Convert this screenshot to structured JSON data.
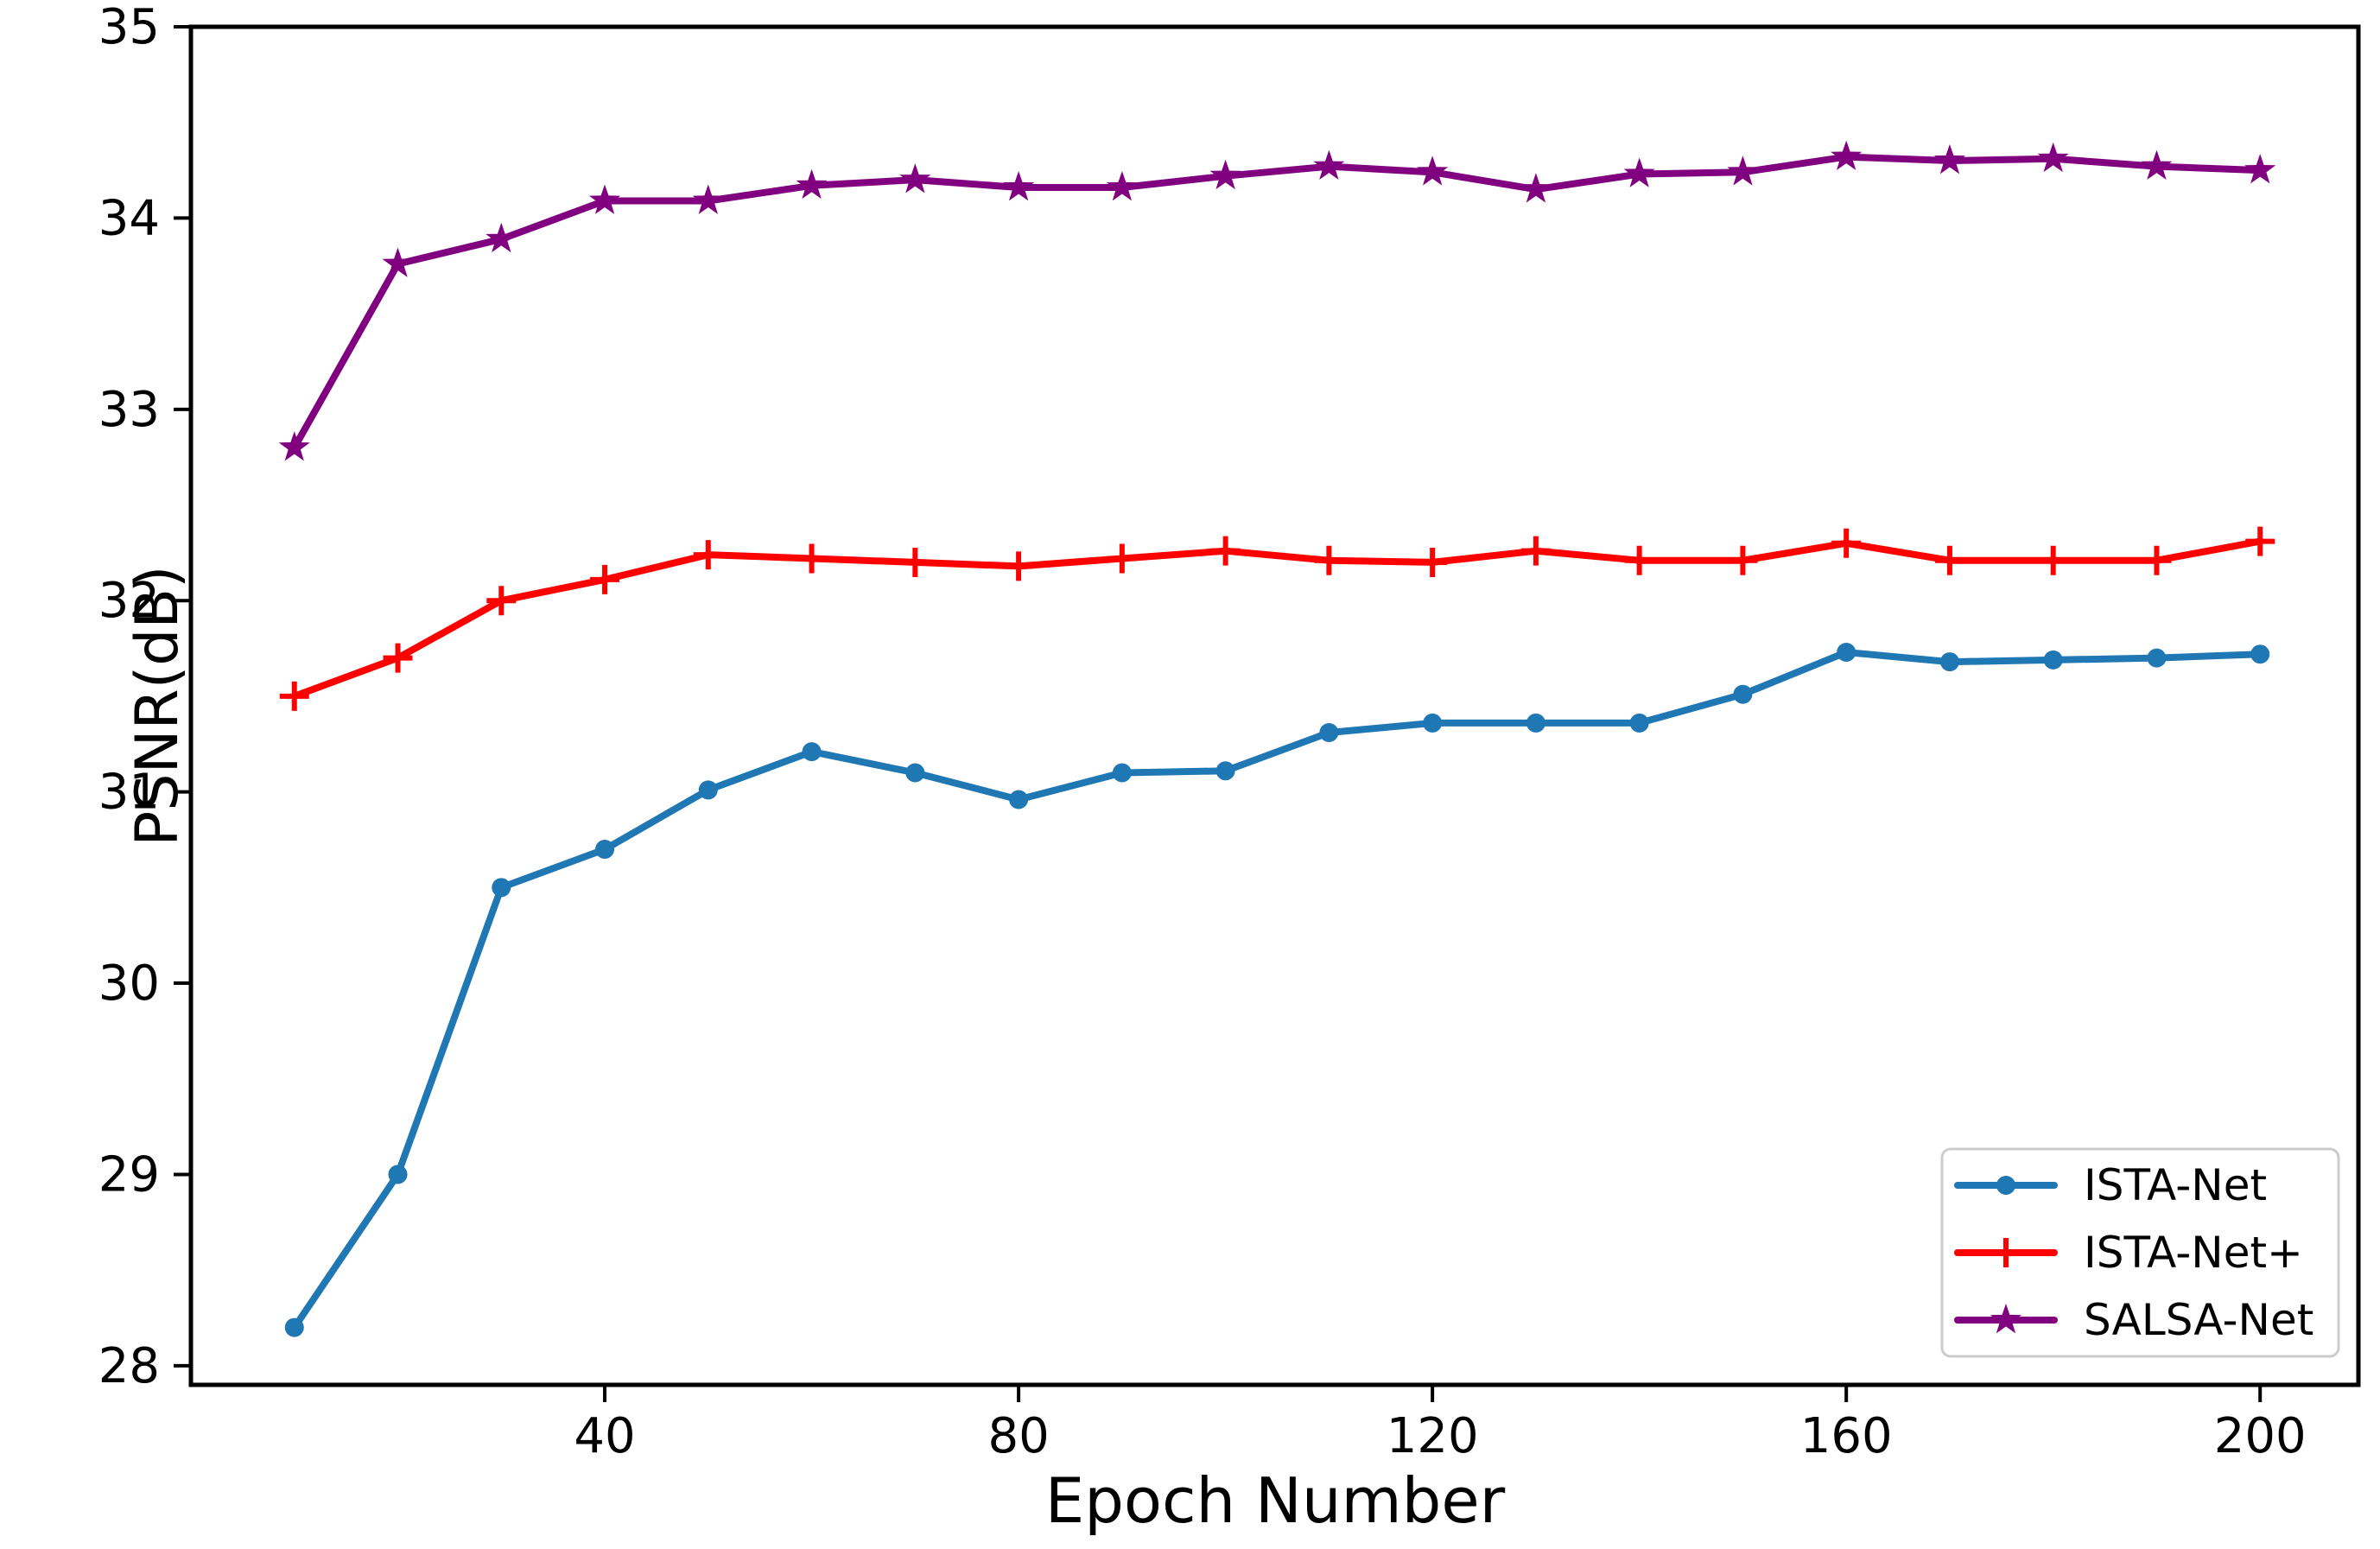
{
  "figure": {
    "background": "#ffffff",
    "frame_color": "#000000"
  },
  "chart_data": {
    "type": "line",
    "title": "",
    "xlabel": "Epoch Number",
    "ylabel": "PSNR(dB)",
    "x": [
      10,
      20,
      30,
      40,
      50,
      60,
      70,
      80,
      90,
      100,
      110,
      120,
      130,
      140,
      150,
      160,
      170,
      180,
      190,
      200
    ],
    "xticks": [
      40,
      80,
      120,
      160,
      200
    ],
    "yticks": [
      28,
      29,
      30,
      31,
      32,
      33,
      34,
      35
    ],
    "xlim": [
      0,
      209.5
    ],
    "ylim": [
      27.9,
      35
    ],
    "grid": false,
    "legend_position": "lower-right",
    "series": [
      {
        "name": "ISTA-Net",
        "color": "#1f77b4",
        "marker": "circle",
        "values": [
          28.2,
          29.0,
          30.5,
          30.7,
          31.01,
          31.21,
          31.1,
          30.96,
          31.1,
          31.11,
          31.31,
          31.36,
          31.36,
          31.36,
          31.51,
          31.73,
          31.68,
          31.69,
          31.7,
          31.72
        ]
      },
      {
        "name": "ISTA-Net+",
        "color": "#ff0000",
        "marker": "plus",
        "values": [
          31.5,
          31.7,
          32.0,
          32.11,
          32.24,
          32.22,
          32.2,
          32.18,
          32.22,
          32.26,
          32.21,
          32.2,
          32.26,
          32.21,
          32.21,
          32.3,
          32.21,
          32.21,
          32.21,
          32.31
        ]
      },
      {
        "name": "SALSA-Net",
        "color": "#800080",
        "marker": "star",
        "values": [
          32.8,
          33.76,
          33.89,
          34.09,
          34.09,
          34.17,
          34.2,
          34.16,
          34.16,
          34.22,
          34.27,
          34.24,
          34.15,
          34.23,
          34.24,
          34.32,
          34.3,
          34.31,
          34.27,
          34.25
        ]
      }
    ]
  }
}
